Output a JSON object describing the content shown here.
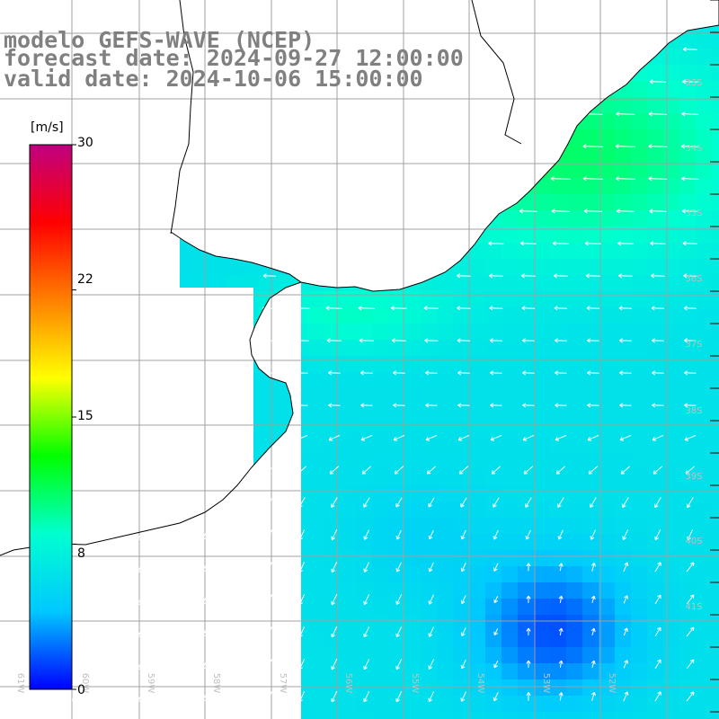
{
  "header": {
    "model": "modelo GEFS-WAVE (NCEP)",
    "forecast_date": "forecast date: 2024-09-27 12:00:00",
    "valid_date": "valid date: 2024-10-06 15:00:00"
  },
  "colorbar": {
    "unit": "[m/s]",
    "ticks": [
      "30",
      "22",
      "15",
      "8",
      "0"
    ],
    "tick_values": [
      30,
      22,
      15,
      8,
      0
    ],
    "min": 0,
    "max": 30,
    "colors": [
      "#0000ff",
      "#00c8ff",
      "#00ffd0",
      "#00ff00",
      "#ffff00",
      "#ff8000",
      "#ff0000",
      "#c00080"
    ]
  },
  "lat_labels": [
    "33S",
    "34S",
    "35S",
    "36S",
    "37S",
    "38S",
    "39S",
    "40S",
    "41S"
  ],
  "lon_labels": [
    "60W",
    "59W",
    "58W",
    "57W",
    "56W",
    "55W",
    "54W",
    "53W",
    "52W",
    "61W"
  ],
  "colors": {
    "land": "#ffffff",
    "coast": "#000000",
    "grid": "#a0a0a0",
    "arrow": "#ffffff",
    "header_text": "#808080"
  }
}
